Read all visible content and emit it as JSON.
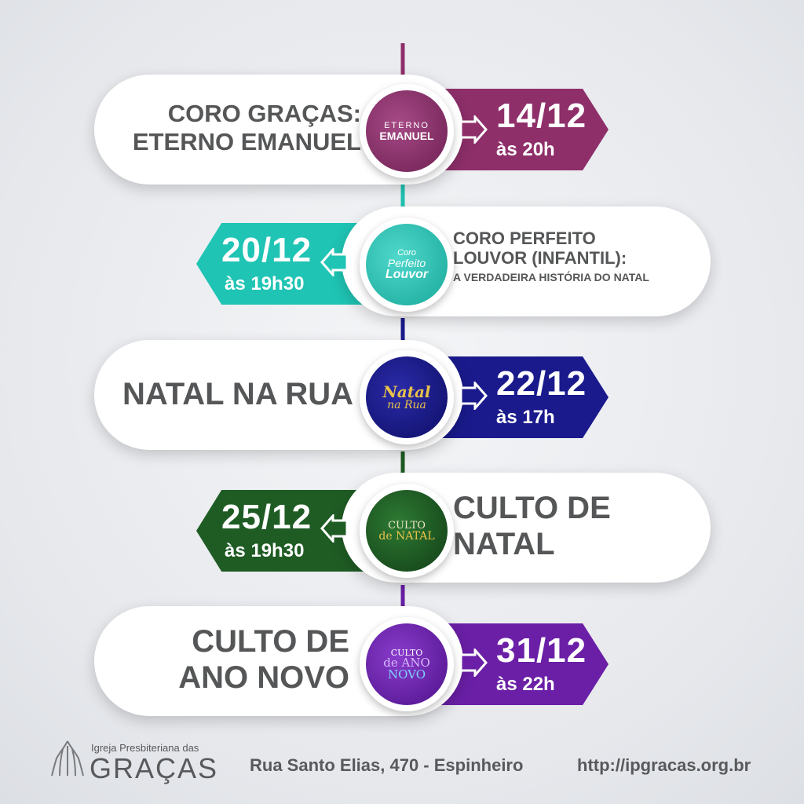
{
  "events": [
    {
      "title_lines": [
        "CORO GRAÇAS:",
        "ETERNO EMANUEL"
      ],
      "date": "14/12",
      "time": "às 20h",
      "color": "#8e2f6a",
      "logo_lines": [
        "ETERNO",
        "EMANUEL"
      ],
      "logo_icon": "eterno-emanuel-logo"
    },
    {
      "title_lines": [
        "CORO PERFEITO",
        "LOUVOR (INFANTIL):",
        "A VERDADEIRA HISTÓRIA DO NATAL"
      ],
      "date": "20/12",
      "time": "às 19h30",
      "color": "#1fc4b4",
      "logo_lines": [
        "Coro",
        "Perfeito",
        "Louvor"
      ],
      "logo_icon": "perfeito-louvor-logo"
    },
    {
      "title_lines": [
        "NATAL NA RUA"
      ],
      "date": "22/12",
      "time": "às 17h",
      "color": "#1a1a8c",
      "logo_lines": [
        "Natal",
        "na Rua"
      ],
      "logo_icon": "natal-na-rua-logo"
    },
    {
      "title_lines": [
        "CULTO DE",
        "NATAL"
      ],
      "date": "25/12",
      "time": "às 19h30",
      "color": "#1f5c24",
      "logo_lines": [
        "CULTO",
        "de NATAL"
      ],
      "logo_icon": "culto-de-natal-logo"
    },
    {
      "title_lines": [
        "CULTO DE",
        "ANO NOVO"
      ],
      "date": "31/12",
      "time": "às 22h",
      "color": "#6a1fa6",
      "logo_lines": [
        "CULTO",
        "de ANO",
        "NOVO"
      ],
      "logo_icon": "culto-ano-novo-logo"
    }
  ],
  "footer": {
    "church_small": "Igreja Presbiteriana das",
    "church_big": "GRAÇAS",
    "address": "Rua Santo Elias, 470 - Espinheiro",
    "url": "http://ipgracas.org.br",
    "logo_icon": "praying-hands-icon"
  }
}
